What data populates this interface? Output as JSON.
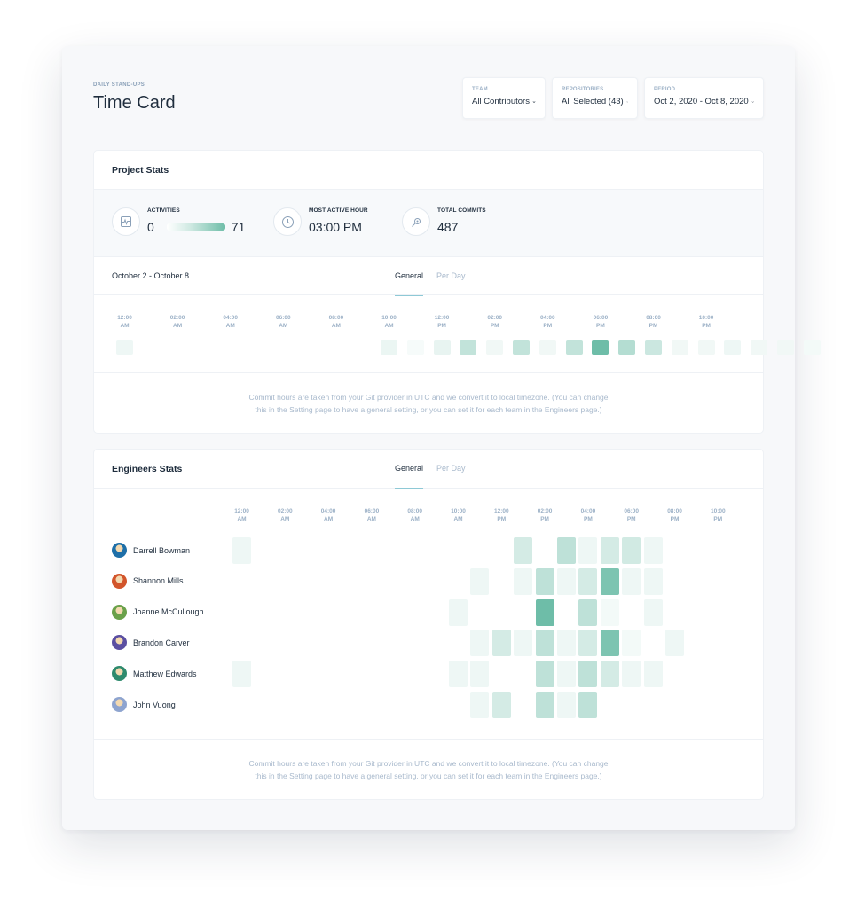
{
  "header": {
    "eyebrow": "DAILY STAND-UPS",
    "title": "Time Card"
  },
  "filters": [
    {
      "label": "TEAM",
      "value": "All Contributors"
    },
    {
      "label": "REPOSITORIES",
      "value": "All Selected (43)"
    },
    {
      "label": "PERIOD",
      "value": "Oct 2, 2020 - Oct 8, 2020"
    }
  ],
  "project_stats": {
    "title": "Project Stats",
    "activities": {
      "label": "ACTIVITIES",
      "min": "0",
      "max": "71",
      "icon": "activity-chart-icon"
    },
    "most_active_hour": {
      "label": "MOST ACTIVE HOUR",
      "value": "03:00 PM",
      "icon": "clock-icon"
    },
    "total_commits": {
      "label": "TOTAL COMMITS",
      "value": "487",
      "icon": "commit-icon"
    },
    "date_range": "October 2 - October 8",
    "tabs": [
      "General",
      "Per Day"
    ],
    "hour_labels": [
      {
        "time": "12:00",
        "ampm": "AM"
      },
      {
        "time": "02:00",
        "ampm": "AM"
      },
      {
        "time": "04:00",
        "ampm": "AM"
      },
      {
        "time": "06:00",
        "ampm": "AM"
      },
      {
        "time": "08:00",
        "ampm": "AM"
      },
      {
        "time": "10:00",
        "ampm": "AM"
      },
      {
        "time": "12:00",
        "ampm": "PM"
      },
      {
        "time": "02:00",
        "ampm": "PM"
      },
      {
        "time": "04:00",
        "ampm": "PM"
      },
      {
        "time": "06:00",
        "ampm": "PM"
      },
      {
        "time": "08:00",
        "ampm": "PM"
      },
      {
        "time": "10:00",
        "ampm": "PM"
      }
    ],
    "hourly_intensity": [
      0.12,
      0,
      0,
      0,
      0,
      0,
      0,
      0,
      0,
      0,
      0.14,
      0.05,
      0.16,
      0.42,
      0.1,
      0.42,
      0.1,
      0.42,
      1.0,
      0.52,
      0.36,
      0.1,
      0.1,
      0.12,
      0.1,
      0.1,
      0.08
    ],
    "footnote_line1": "Commit hours are taken from your Git provider in UTC and we convert it to local timezone. (You can change",
    "footnote_line2": "this in the Setting page to have a general setting, or you can set it for each team in the Engineers page.)"
  },
  "engineers_stats": {
    "title": "Engineers Stats",
    "tabs": [
      "General",
      "Per Day"
    ],
    "hour_labels": [
      {
        "time": "12:00",
        "ampm": "AM"
      },
      {
        "time": "02:00",
        "ampm": "AM"
      },
      {
        "time": "04:00",
        "ampm": "AM"
      },
      {
        "time": "06:00",
        "ampm": "AM"
      },
      {
        "time": "08:00",
        "ampm": "AM"
      },
      {
        "time": "10:00",
        "ampm": "AM"
      },
      {
        "time": "12:00",
        "ampm": "PM"
      },
      {
        "time": "02:00",
        "ampm": "PM"
      },
      {
        "time": "04:00",
        "ampm": "PM"
      },
      {
        "time": "06:00",
        "ampm": "PM"
      },
      {
        "time": "08:00",
        "ampm": "PM"
      },
      {
        "time": "10:00",
        "ampm": "PM"
      }
    ],
    "engineers": [
      {
        "name": "Darrell Bowman",
        "avatar_color": "#1e6fa8",
        "hours": [
          0.12,
          0,
          0,
          0,
          0,
          0,
          0,
          0,
          0,
          0,
          0,
          0,
          0,
          0.3,
          0,
          0.45,
          0.12,
          0.3,
          0.32,
          0.12
        ]
      },
      {
        "name": "Shannon Mills",
        "avatar_color": "#d2552b",
        "hours": [
          0,
          0,
          0,
          0,
          0,
          0,
          0,
          0,
          0,
          0,
          0,
          0.12,
          0,
          0.12,
          0.45,
          0.12,
          0.3,
          0.9,
          0.12,
          0.12
        ]
      },
      {
        "name": "Joanne McCullough",
        "avatar_color": "#6aa14a",
        "hours": [
          0,
          0,
          0,
          0,
          0,
          0,
          0,
          0,
          0,
          0,
          0.12,
          0,
          0,
          0,
          1.0,
          0,
          0.45,
          0.08,
          0,
          0.12
        ]
      },
      {
        "name": "Brandon Carver",
        "avatar_color": "#5b4fa1",
        "hours": [
          0,
          0,
          0,
          0,
          0,
          0,
          0,
          0,
          0,
          0,
          0,
          0.12,
          0.3,
          0.12,
          0.45,
          0.12,
          0.3,
          0.9,
          0.08,
          0,
          0.12
        ]
      },
      {
        "name": "Matthew Edwards",
        "avatar_color": "#2f8a6d",
        "hours": [
          0.12,
          0,
          0,
          0,
          0,
          0,
          0,
          0,
          0,
          0,
          0.12,
          0.12,
          0,
          0,
          0.45,
          0.12,
          0.45,
          0.3,
          0.12,
          0.12
        ]
      },
      {
        "name": "John Vuong",
        "avatar_color": "#8ea4cf",
        "hours": [
          0,
          0,
          0,
          0,
          0,
          0,
          0,
          0,
          0,
          0,
          0,
          0.12,
          0.3,
          0,
          0.45,
          0.12,
          0.45
        ]
      }
    ],
    "footnote_line1": "Commit hours are taken from your Git provider in UTC and we convert it to local timezone. (You can change",
    "footnote_line2": "this in the Setting page to have a general setting, or you can set it for each team in the Engineers page.)"
  },
  "colors": {
    "heat_max": "#6ebda8",
    "accent": "#8ec9d6",
    "muted": "#9bb0c6"
  }
}
